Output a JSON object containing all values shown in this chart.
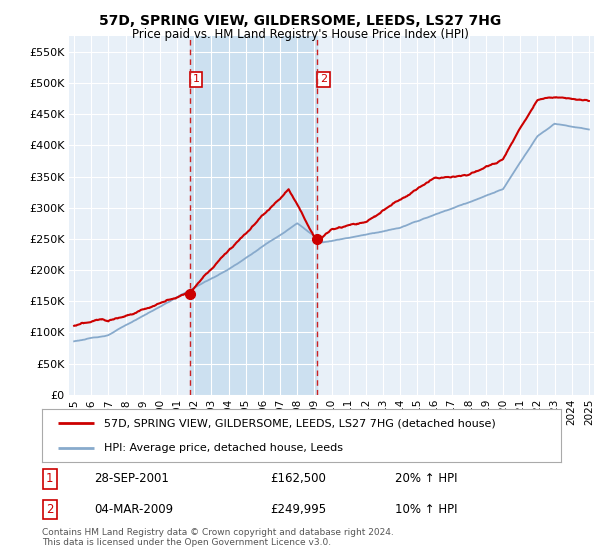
{
  "title": "57D, SPRING VIEW, GILDERSOME, LEEDS, LS27 7HG",
  "subtitle": "Price paid vs. HM Land Registry's House Price Index (HPI)",
  "ylim": [
    0,
    575000
  ],
  "yticks": [
    0,
    50000,
    100000,
    150000,
    200000,
    250000,
    300000,
    350000,
    400000,
    450000,
    500000,
    550000
  ],
  "ytick_labels": [
    "£0",
    "£50K",
    "£100K",
    "£150K",
    "£200K",
    "£250K",
    "£300K",
    "£350K",
    "£400K",
    "£450K",
    "£500K",
    "£550K"
  ],
  "xlim_start": 1994.7,
  "xlim_end": 2025.3,
  "xtick_years": [
    1995,
    1996,
    1997,
    1998,
    1999,
    2000,
    2001,
    2002,
    2003,
    2004,
    2005,
    2006,
    2007,
    2008,
    2009,
    2010,
    2011,
    2012,
    2013,
    2014,
    2015,
    2016,
    2017,
    2018,
    2019,
    2020,
    2021,
    2022,
    2023,
    2024,
    2025
  ],
  "red_line_color": "#cc0000",
  "blue_line_color": "#88aacc",
  "vline_color": "#cc2222",
  "vline_style": "--",
  "vline1_x": 2001.75,
  "vline2_x": 2009.17,
  "marker1_x": 2001.75,
  "marker1_y": 162500,
  "marker2_x": 2009.17,
  "marker2_y": 249995,
  "shaded_color": "#cce0f0",
  "legend_line1": "57D, SPRING VIEW, GILDERSOME, LEEDS, LS27 7HG (detached house)",
  "legend_line2": "HPI: Average price, detached house, Leeds",
  "table_row1_num": "1",
  "table_row1_date": "28-SEP-2001",
  "table_row1_price": "£162,500",
  "table_row1_hpi": "20% ↑ HPI",
  "table_row2_num": "2",
  "table_row2_date": "04-MAR-2009",
  "table_row2_price": "£249,995",
  "table_row2_hpi": "10% ↑ HPI",
  "footer": "Contains HM Land Registry data © Crown copyright and database right 2024.\nThis data is licensed under the Open Government Licence v3.0.",
  "bg_color": "#ffffff",
  "plot_bg_color": "#e8f0f8",
  "grid_color": "#ffffff"
}
